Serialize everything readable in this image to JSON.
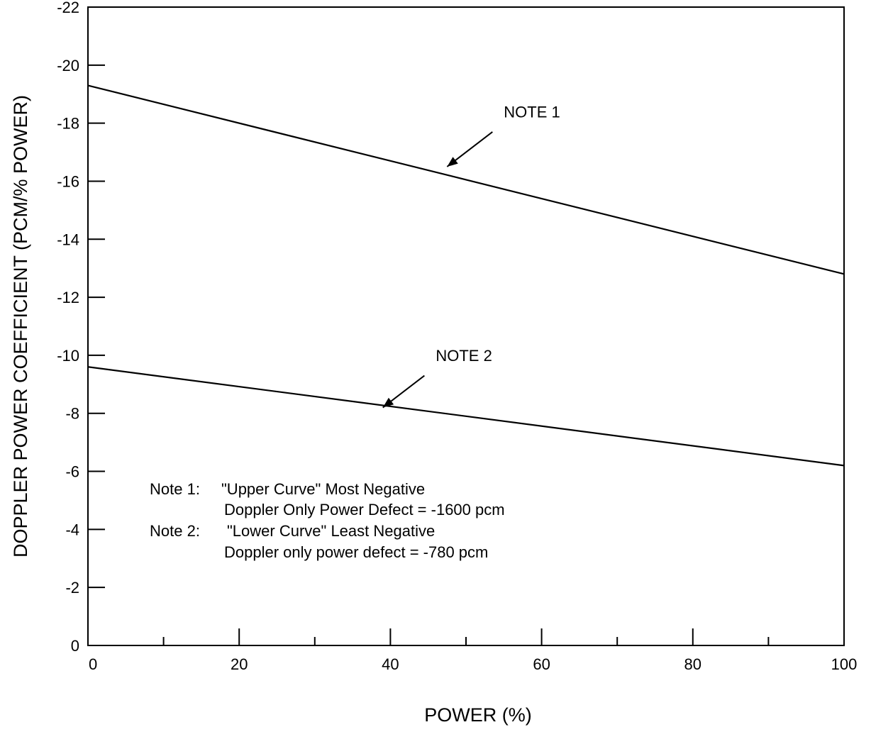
{
  "chart_data": {
    "type": "line",
    "xlabel": "POWER (%)",
    "ylabel": "DOPPLER POWER COEFFICIENT (PCM/% POWER)",
    "xlim": [
      0,
      100
    ],
    "ylim": [
      0,
      -22
    ],
    "y_axis_inverted": true,
    "x_major_ticks": [
      0,
      20,
      40,
      60,
      80,
      100
    ],
    "x_minor_ticks": [
      10,
      30,
      50,
      70,
      90
    ],
    "x_tick_labels": [
      "0",
      "20",
      "40",
      "60",
      "80",
      "100"
    ],
    "y_ticks": [
      0,
      -2,
      -4,
      -6,
      -8,
      -10,
      -12,
      -14,
      -16,
      -18,
      -20,
      -22
    ],
    "y_tick_labels": [
      "0",
      "-2",
      "-4",
      "-6",
      "-8",
      "-10",
      "-12",
      "-14",
      "-16",
      "-18",
      "-20",
      "-22"
    ],
    "grid": false,
    "series": [
      {
        "x": [
          0,
          100
        ],
        "y": [
          -19.3,
          -12.8
        ]
      },
      {
        "x": [
          0,
          100
        ],
        "y": [
          -9.6,
          -6.2
        ]
      }
    ],
    "callouts": [
      {
        "label": "NOTE 1",
        "series_index": 0,
        "text_at": [
          55,
          -18.2
        ],
        "arrow_from": [
          53.5,
          -17.7
        ],
        "arrow_to": [
          47.5,
          -16.5
        ]
      },
      {
        "label": "NOTE 2",
        "series_index": 1,
        "text_at": [
          46,
          -9.8
        ],
        "arrow_from": [
          44.5,
          -9.3
        ],
        "arrow_to": [
          39,
          -8.2
        ]
      }
    ],
    "notes": [
      {
        "label": "Note 1:",
        "line1": "\"Upper Curve\" Most Negative",
        "line2": "Doppler Only Power Defect = -1600 pcm"
      },
      {
        "label": "Note 2:",
        "line1": "\"Lower Curve\"  Least Negative",
        "line2": "Doppler only power defect = -780 pcm"
      }
    ]
  }
}
